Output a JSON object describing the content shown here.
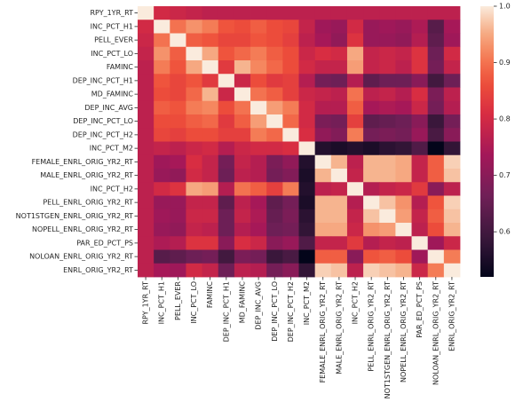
{
  "chart_data": {
    "type": "heatmap",
    "title": "",
    "xlabel": "",
    "ylabel": "",
    "labels": [
      "RPY_1YR_RT",
      "INC_PCT_H1",
      "PELL_EVER",
      "INC_PCT_LO",
      "FAMINC",
      "DEP_INC_PCT_H1",
      "MD_FAMINC",
      "DEP_INC_AVG",
      "DEP_INC_PCT_LO",
      "DEP_INC_PCT_H2",
      "INC_PCT_M2",
      "FEMALE_ENRL_ORIG_YR2_RT",
      "MALE_ENRL_ORIG_YR2_RT",
      "INC_PCT_H2",
      "PELL_ENRL_ORIG_YR2_RT",
      "NOT1STGEN_ENRL_ORIG_YR2_RT",
      "NOPELL_ENRL_ORIG_YR2_RT",
      "PAR_ED_PCT_PS",
      "NOLOAN_ENRL_ORIG_YR2_RT",
      "ENRL_ORIG_YR2_RT"
    ],
    "values": [
      [
        1.0,
        0.8,
        0.79,
        0.78,
        0.77,
        0.77,
        0.77,
        0.77,
        0.77,
        0.77,
        0.77,
        0.77,
        0.77,
        0.77,
        0.77,
        0.77,
        0.77,
        0.77,
        0.77,
        0.77
      ],
      [
        0.8,
        1.0,
        0.9,
        0.93,
        0.91,
        0.87,
        0.86,
        0.88,
        0.86,
        0.85,
        0.78,
        0.73,
        0.72,
        0.8,
        0.72,
        0.73,
        0.72,
        0.75,
        0.63,
        0.74
      ],
      [
        0.79,
        0.9,
        1.0,
        0.88,
        0.87,
        0.85,
        0.85,
        0.87,
        0.86,
        0.84,
        0.77,
        0.74,
        0.71,
        0.82,
        0.72,
        0.72,
        0.71,
        0.76,
        0.64,
        0.73
      ],
      [
        0.78,
        0.93,
        0.88,
        1.0,
        0.95,
        0.87,
        0.89,
        0.91,
        0.88,
        0.86,
        0.79,
        0.81,
        0.8,
        0.95,
        0.78,
        0.79,
        0.78,
        0.82,
        0.66,
        0.8
      ],
      [
        0.77,
        0.91,
        0.87,
        0.95,
        1.0,
        0.83,
        0.96,
        0.92,
        0.89,
        0.86,
        0.8,
        0.78,
        0.78,
        0.94,
        0.78,
        0.79,
        0.77,
        0.82,
        0.67,
        0.78
      ],
      [
        0.77,
        0.87,
        0.85,
        0.87,
        0.83,
        1.0,
        0.79,
        0.86,
        0.83,
        0.84,
        0.76,
        0.67,
        0.66,
        0.76,
        0.64,
        0.66,
        0.66,
        0.7,
        0.6,
        0.66
      ],
      [
        0.77,
        0.86,
        0.85,
        0.89,
        0.96,
        0.79,
        1.0,
        0.9,
        0.88,
        0.84,
        0.79,
        0.78,
        0.77,
        0.9,
        0.77,
        0.78,
        0.76,
        0.81,
        0.68,
        0.77
      ],
      [
        0.77,
        0.88,
        0.87,
        0.91,
        0.92,
        0.86,
        0.9,
        1.0,
        0.94,
        0.91,
        0.8,
        0.76,
        0.76,
        0.88,
        0.74,
        0.75,
        0.74,
        0.79,
        0.67,
        0.76
      ],
      [
        0.77,
        0.86,
        0.86,
        0.88,
        0.89,
        0.83,
        0.88,
        0.94,
        1.0,
        0.89,
        0.8,
        0.68,
        0.67,
        0.84,
        0.64,
        0.65,
        0.66,
        0.7,
        0.59,
        0.67
      ],
      [
        0.77,
        0.85,
        0.84,
        0.86,
        0.86,
        0.84,
        0.84,
        0.91,
        0.89,
        1.0,
        0.81,
        0.71,
        0.69,
        0.91,
        0.67,
        0.68,
        0.67,
        0.72,
        0.61,
        0.7
      ],
      [
        0.77,
        0.78,
        0.77,
        0.79,
        0.8,
        0.76,
        0.79,
        0.8,
        0.8,
        0.81,
        1.0,
        0.56,
        0.55,
        0.56,
        0.55,
        0.57,
        0.58,
        0.62,
        0.52,
        0.58
      ],
      [
        0.77,
        0.73,
        0.74,
        0.81,
        0.78,
        0.67,
        0.78,
        0.76,
        0.68,
        0.71,
        0.56,
        1.0,
        0.96,
        0.77,
        0.96,
        0.96,
        0.95,
        0.78,
        0.88,
        0.98
      ],
      [
        0.77,
        0.72,
        0.71,
        0.8,
        0.78,
        0.66,
        0.77,
        0.76,
        0.67,
        0.69,
        0.55,
        0.96,
        1.0,
        0.78,
        0.96,
        0.96,
        0.95,
        0.78,
        0.88,
        0.97
      ],
      [
        0.77,
        0.8,
        0.82,
        0.95,
        0.94,
        0.76,
        0.9,
        0.88,
        0.84,
        0.91,
        0.56,
        0.77,
        0.78,
        1.0,
        0.76,
        0.78,
        0.79,
        0.83,
        0.7,
        0.77
      ],
      [
        0.77,
        0.72,
        0.72,
        0.78,
        0.78,
        0.64,
        0.77,
        0.74,
        0.64,
        0.67,
        0.55,
        0.96,
        0.96,
        0.76,
        1.0,
        0.97,
        0.93,
        0.76,
        0.87,
        0.98
      ],
      [
        0.77,
        0.73,
        0.72,
        0.79,
        0.79,
        0.66,
        0.78,
        0.75,
        0.65,
        0.68,
        0.57,
        0.96,
        0.96,
        0.78,
        0.97,
        1.0,
        0.94,
        0.78,
        0.88,
        0.97
      ],
      [
        0.77,
        0.72,
        0.71,
        0.78,
        0.77,
        0.66,
        0.76,
        0.74,
        0.66,
        0.67,
        0.58,
        0.95,
        0.95,
        0.79,
        0.93,
        0.94,
        1.0,
        0.77,
        0.86,
        0.96
      ],
      [
        0.77,
        0.75,
        0.76,
        0.82,
        0.82,
        0.7,
        0.81,
        0.79,
        0.7,
        0.72,
        0.62,
        0.78,
        0.78,
        0.83,
        0.76,
        0.78,
        0.77,
        1.0,
        0.73,
        0.79
      ],
      [
        0.77,
        0.63,
        0.64,
        0.66,
        0.67,
        0.6,
        0.68,
        0.67,
        0.59,
        0.61,
        0.52,
        0.88,
        0.88,
        0.7,
        0.87,
        0.88,
        0.86,
        0.73,
        1.0,
        0.91
      ],
      [
        0.77,
        0.74,
        0.73,
        0.8,
        0.78,
        0.66,
        0.77,
        0.76,
        0.67,
        0.7,
        0.58,
        0.98,
        0.97,
        0.77,
        0.98,
        0.97,
        0.96,
        0.79,
        0.91,
        1.0
      ]
    ],
    "colorbar": {
      "min": 0.52,
      "max": 1.0,
      "ticks": [
        "1.0",
        "0.9",
        "0.8",
        "0.7",
        "0.6"
      ],
      "tick_values": [
        1.0,
        0.9,
        0.8,
        0.7,
        0.6
      ],
      "colormap": "rocket"
    },
    "grid": false
  }
}
